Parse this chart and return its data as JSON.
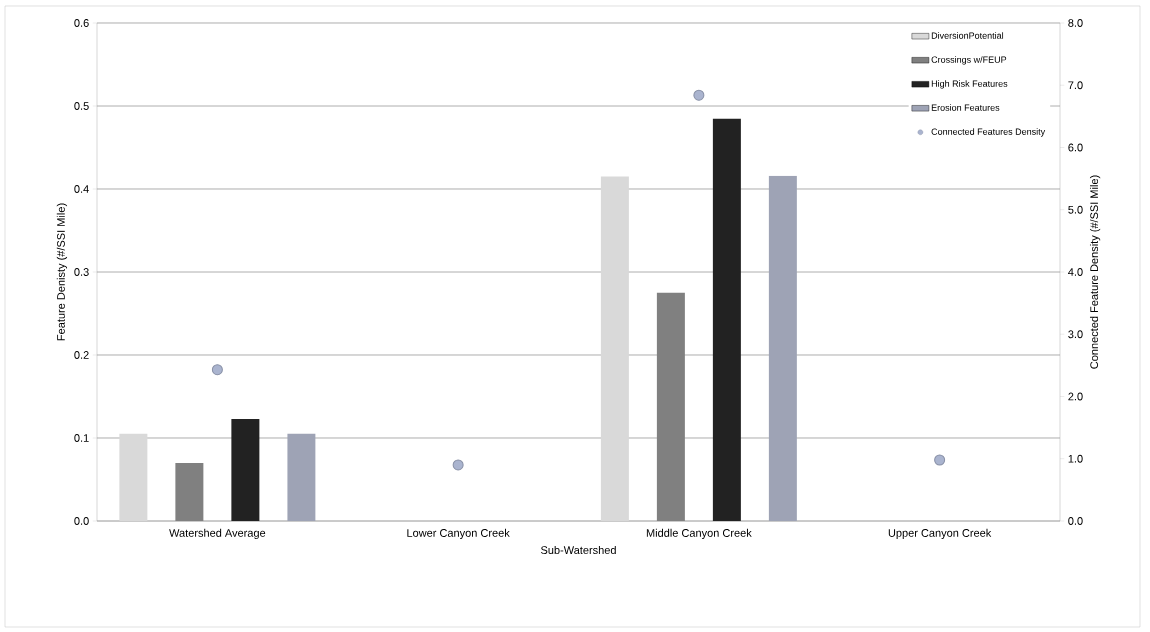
{
  "chart_data": {
    "type": "bar",
    "xlabel": "Sub-Watershed",
    "ylabel": "Feature Denisty (#/SSI Mile)",
    "y2label": "Connected Feature Density (#/SSI Mile)",
    "categories": [
      "Watershed Average",
      "Lower Canyon Creek",
      "Middle Canyon Creek",
      "Upper Canyon Creek"
    ],
    "series": [
      {
        "name": "DiversionPotential",
        "color": "#d9d9d9",
        "values": [
          0.105,
          null,
          0.415,
          null
        ]
      },
      {
        "name": "Crossings w/FEUP",
        "color": "#808080",
        "values": [
          0.07,
          null,
          0.275,
          null
        ]
      },
      {
        "name": "High Risk Features",
        "color": "#222222",
        "values": [
          0.123,
          null,
          0.485,
          null
        ]
      },
      {
        "name": "Erosion Features",
        "color": "#9ea3b5",
        "values": [
          0.105,
          null,
          0.416,
          null
        ]
      },
      {
        "name": "Connected Features Density",
        "type": "scatter",
        "axis": "y2",
        "color": "#aab4cf",
        "values": [
          2.43,
          0.9,
          6.84,
          0.98
        ]
      }
    ],
    "ylim": [
      0,
      0.6
    ],
    "yticks": [
      {
        "value": 0,
        "label": "0.0"
      },
      {
        "value": 0.1,
        "label": "0.1"
      },
      {
        "value": 0.2,
        "label": "0.2"
      },
      {
        "value": 0.3,
        "label": "0.3"
      },
      {
        "value": 0.4,
        "label": "0.4"
      },
      {
        "value": 0.5,
        "label": "0.5"
      },
      {
        "value": 0.6,
        "label": "0.6"
      }
    ],
    "y2lim": [
      0,
      8
    ],
    "y2ticks": [
      {
        "value": 0,
        "label": "0.0"
      },
      {
        "value": 1,
        "label": "1.0"
      },
      {
        "value": 2,
        "label": "2.0"
      },
      {
        "value": 3,
        "label": "3.0"
      },
      {
        "value": 4,
        "label": "4.0"
      },
      {
        "value": 5,
        "label": "5.0"
      },
      {
        "value": 6,
        "label": "6.0"
      },
      {
        "value": 7,
        "label": "7.0"
      },
      {
        "value": 8,
        "label": "8.0"
      }
    ],
    "grid": "y",
    "legend": "top right"
  }
}
